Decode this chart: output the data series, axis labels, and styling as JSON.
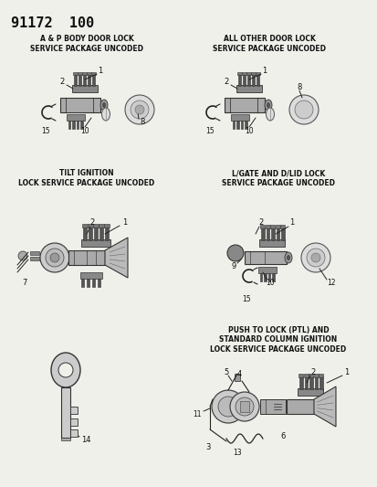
{
  "bg_color": "#f0f0eb",
  "text_color": "#111111",
  "title": "91172  100",
  "s1_title": "A & P BODY DOOR LOCK\nSERVICE PACKAGE UNCODED",
  "s2_title": "ALL OTHER DOOR LOCK\nSERVICE PACKAGE UNCODED",
  "s3_title": "TILT IGNITION\nLOCK SERVICE PACKAGE UNCODED",
  "s4_title": "L/GATE AND D/LID LOCK\nSERVICE PACKAGE UNCODED",
  "s5_title": "PUSH TO LOCK (PTL) AND\nSTANDARD COLUMN IGNITION\nLOCK SERVICE PACKAGE UNCODED",
  "part_color": "#444444",
  "line_color": "#222222",
  "figw": 4.14,
  "figh": 5.33,
  "dpi": 100
}
